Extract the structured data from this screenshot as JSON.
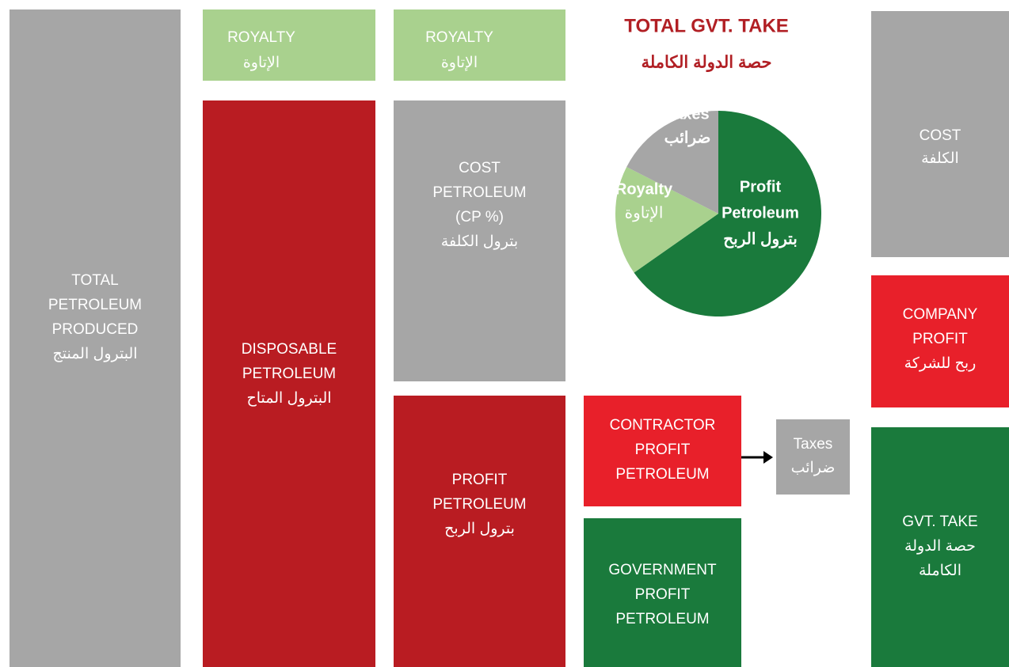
{
  "blocks": {
    "total": {
      "lines": [
        "TOTAL",
        "PETROLEUM",
        "PRODUCED",
        "البترول المنتج"
      ]
    },
    "royalty1": {
      "lines": [
        "ROYALTY",
        "الإتاوة"
      ]
    },
    "disposable": {
      "lines": [
        "DISPOSABLE",
        "PETROLEUM",
        "البترول المتاح"
      ]
    },
    "royalty2": {
      "lines": [
        "ROYALTY",
        "الإتاوة"
      ]
    },
    "cost_petroleum": {
      "lines": [
        "COST",
        "PETROLEUM",
        "(CP %)",
        "بترول الكلفة"
      ]
    },
    "profit_petroleum": {
      "lines": [
        "PROFIT",
        "PETROLEUM",
        "بترول الربح"
      ]
    },
    "contractor": {
      "lines": [
        "CONTRACTOR",
        "PROFIT",
        "PETROLEUM"
      ]
    },
    "taxes": {
      "lines": [
        "Taxes",
        "ضرائب"
      ]
    },
    "government": {
      "lines": [
        "GOVERNMENT",
        "PROFIT",
        "PETROLEUM"
      ]
    },
    "cost": {
      "lines": [
        "COST",
        "الكلفة"
      ]
    },
    "company_profit": {
      "lines": [
        "COMPANY",
        "PROFIT",
        "ربح للشركة"
      ]
    },
    "gvt_take": {
      "lines": [
        "GVT. TAKE",
        "حصة الدولة",
        "الكاملة"
      ]
    }
  },
  "pie": {
    "title": "TOTAL GVT. TAKE",
    "subtitle": "حصة الدولة الكاملة",
    "slices": {
      "taxes": [
        "Taxes",
        "ضرائب"
      ],
      "royalty": [
        "Royalty",
        "الإتاوة"
      ],
      "profit": [
        "Profit",
        "Petroleum",
        "بترول الربح"
      ]
    }
  }
}
